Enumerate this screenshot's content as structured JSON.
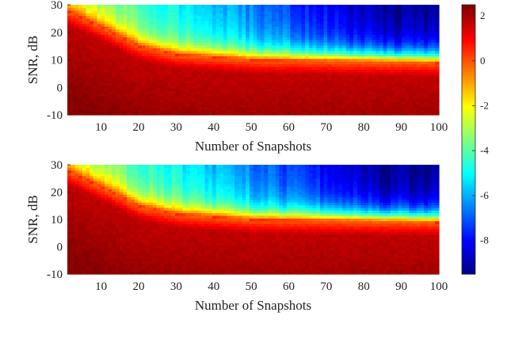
{
  "chart_data": [
    {
      "type": "heatmap",
      "xlabel": "Number of Snapshots",
      "ylabel": "SNR, dB",
      "xlim": [
        1,
        100
      ],
      "ylim": [
        -10,
        30
      ],
      "xticks": [
        10,
        20,
        30,
        40,
        50,
        60,
        70,
        80,
        90,
        100
      ],
      "yticks": [
        -10,
        0,
        10,
        20,
        30
      ],
      "z_range": [
        -9.5,
        2.5
      ],
      "description_of_values": "Values near 2 for SNR below ~8 dB; decreasing to about -8 at high SNR and many snapshots",
      "transition_snr_by_snapshots": [
        [
          1,
          28
        ],
        [
          10,
          22
        ],
        [
          20,
          15
        ],
        [
          30,
          12
        ],
        [
          50,
          10
        ],
        [
          100,
          9
        ]
      ]
    },
    {
      "type": "heatmap",
      "xlabel": "Number of Snapshots",
      "ylabel": "SNR, dB",
      "xlim": [
        1,
        100
      ],
      "ylim": [
        -10,
        30
      ],
      "xticks": [
        10,
        20,
        30,
        40,
        50,
        60,
        70,
        80,
        90,
        100
      ],
      "yticks": [
        -10,
        0,
        10,
        20,
        30
      ],
      "z_range": [
        -9.5,
        2.5
      ],
      "description_of_values": "Same structure as the upper panel",
      "transition_snr_by_snapshots": [
        [
          1,
          28
        ],
        [
          10,
          22
        ],
        [
          20,
          15
        ],
        [
          30,
          12
        ],
        [
          50,
          10
        ],
        [
          100,
          9
        ]
      ]
    }
  ],
  "colorbar": {
    "colormap": "jet",
    "range": [
      -9.5,
      2.5
    ],
    "ticks": [
      2,
      0,
      -2,
      -4,
      -6,
      -8
    ]
  }
}
